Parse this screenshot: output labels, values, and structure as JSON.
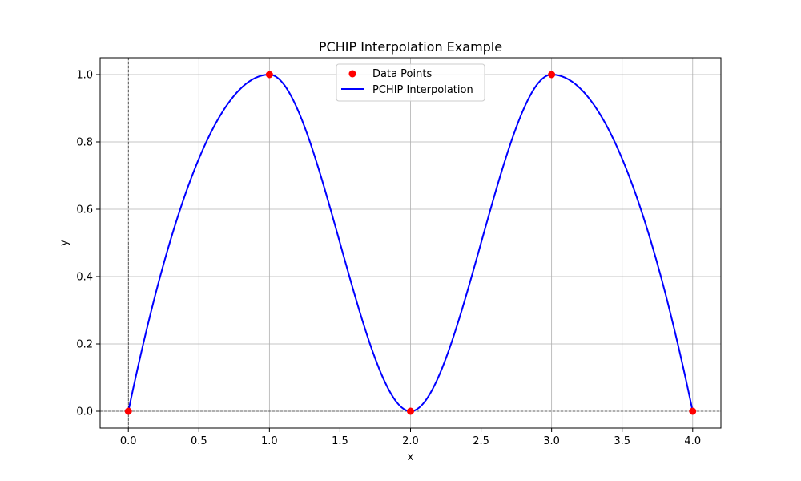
{
  "chart_data": {
    "type": "line",
    "title": "PCHIP Interpolation Example",
    "xlabel": "x",
    "ylabel": "y",
    "xlim": [
      -0.2,
      4.2
    ],
    "ylim": [
      -0.05,
      1.05
    ],
    "xticks": [
      0.0,
      0.5,
      1.0,
      1.5,
      2.0,
      2.5,
      3.0,
      3.5,
      4.0
    ],
    "xtick_labels": [
      "0.0",
      "0.5",
      "1.0",
      "1.5",
      "2.0",
      "2.5",
      "3.0",
      "3.5",
      "4.0"
    ],
    "yticks": [
      0.0,
      0.2,
      0.4,
      0.6,
      0.8,
      1.0
    ],
    "ytick_labels": [
      "0.0",
      "0.2",
      "0.4",
      "0.6",
      "0.8",
      "1.0"
    ],
    "grid": true,
    "reference_lines": {
      "x": 0,
      "y": 0,
      "style": "dashed",
      "color": "#000000"
    },
    "legend": {
      "placement": "upper center",
      "entries": [
        {
          "label": "Data Points",
          "marker": "circle",
          "color": "#ff0000"
        },
        {
          "label": "PCHIP Interpolation",
          "marker": "line",
          "color": "#0000ff"
        }
      ]
    },
    "series": [
      {
        "name": "Data Points",
        "kind": "scatter",
        "color": "#ff0000",
        "x": [
          0,
          1,
          2,
          3,
          4
        ],
        "y": [
          0,
          1,
          0,
          1,
          0
        ]
      },
      {
        "name": "PCHIP Interpolation",
        "kind": "line",
        "color": "#0000ff",
        "x": [
          0,
          1,
          2,
          3,
          4
        ],
        "y": [
          0,
          1,
          0,
          1,
          0
        ],
        "interpolation": "pchip"
      }
    ]
  }
}
